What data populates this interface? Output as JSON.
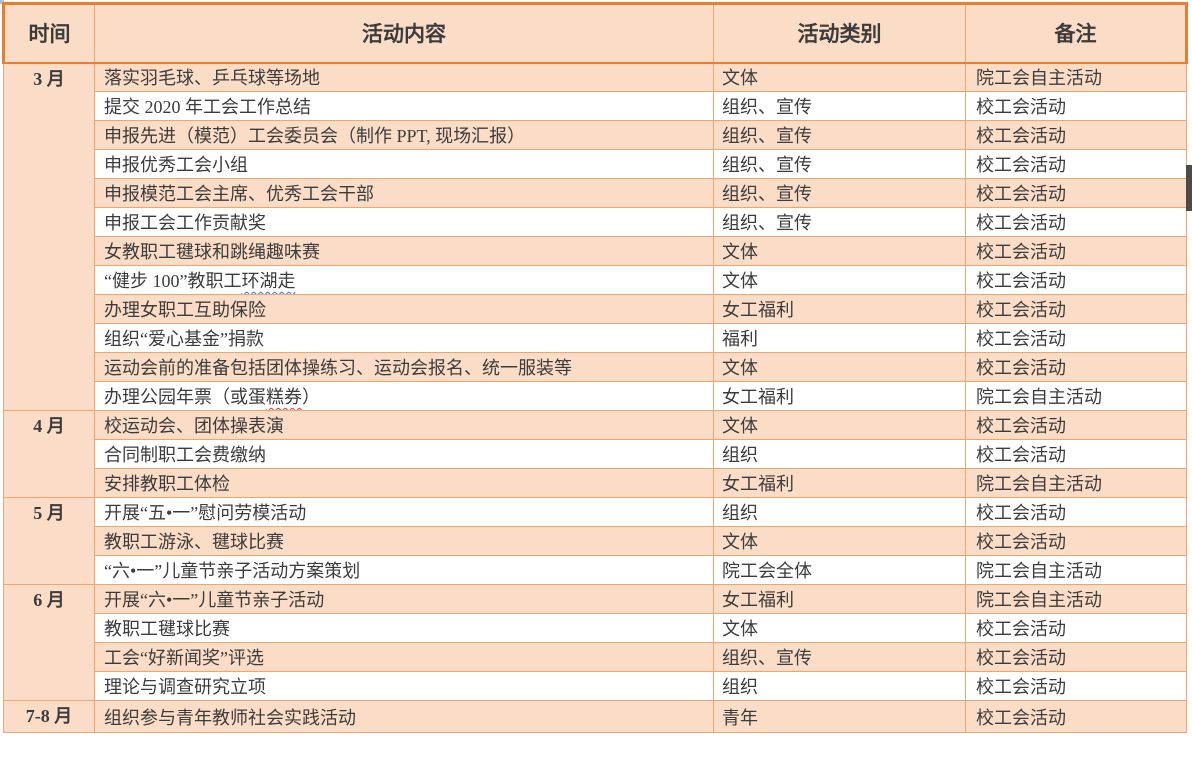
{
  "colors": {
    "peach": "#fbdcc6",
    "border_light": "#f2a46e",
    "border_dark": "#e87d33",
    "text": "#3c3c3c"
  },
  "table": {
    "columns": [
      "时间",
      "活动内容",
      "活动类别",
      "备注"
    ],
    "rows": [
      {
        "month": "3 月",
        "span": 12,
        "content": [
          {
            "t": "落实羽毛球、乒乓球等场地"
          }
        ],
        "category": "文体",
        "remark": "院工会自主活动"
      },
      {
        "content": [
          {
            "t": "提交 2020 年工会工作总结"
          }
        ],
        "category": "组织、宣传",
        "remark": "校工会活动"
      },
      {
        "content": [
          {
            "t": "申报先进（模范）工会委员会（制作 PPT, 现场汇报）"
          }
        ],
        "category": "组织、宣传",
        "remark": "校工会活动"
      },
      {
        "content": [
          {
            "t": "申报优秀工会小组"
          }
        ],
        "category": "组织、宣传",
        "remark": "校工会活动"
      },
      {
        "content": [
          {
            "t": "申报模范工会主席、优秀工会干部"
          }
        ],
        "category": "组织、宣传",
        "remark": "校工会活动"
      },
      {
        "content": [
          {
            "t": "申报工会工作贡献奖"
          }
        ],
        "category": "组织、宣传",
        "remark": "校工会活动"
      },
      {
        "content": [
          {
            "t": "女教职工毽球和跳绳趣味赛"
          }
        ],
        "category": "文体",
        "remark": "校工会活动"
      },
      {
        "content": [
          {
            "t": "“健步 100”教职工"
          },
          {
            "t": "环湖走",
            "u": "blue"
          }
        ],
        "category": "文体",
        "remark": "校工会活动"
      },
      {
        "content": [
          {
            "t": "办理女职工互助保险"
          }
        ],
        "category": "女工福利",
        "remark": "校工会活动"
      },
      {
        "content": [
          {
            "t": "组织“爱心基金”捐款"
          }
        ],
        "category": "福利",
        "remark": "校工会活动"
      },
      {
        "content": [
          {
            "t": "运动会前的准备包括团体操练习、运动会报名、统一服装等"
          }
        ],
        "category": "文体",
        "remark": "校工会活动"
      },
      {
        "content": [
          {
            "t": "办理公园年票（或蛋"
          },
          {
            "t": "糕券",
            "u": "red"
          },
          {
            "t": "）"
          }
        ],
        "category": "女工福利",
        "remark": "院工会自主活动"
      },
      {
        "month": "4 月",
        "span": 3,
        "content": [
          {
            "t": "校运动会、团体操表演"
          }
        ],
        "category": "文体",
        "remark": "校工会活动"
      },
      {
        "content": [
          {
            "t": "合同制职工会费缴纳"
          }
        ],
        "category": "组织",
        "remark": "校工会活动"
      },
      {
        "content": [
          {
            "t": "安排教职工体检"
          }
        ],
        "category": "女工福利",
        "remark": "院工会自主活动"
      },
      {
        "month": "5 月",
        "span": 3,
        "content": [
          {
            "t": "开展“五•一”慰问劳模活动"
          }
        ],
        "category": "组织",
        "remark": "校工会活动"
      },
      {
        "content": [
          {
            "t": "教职工游泳、毽球比赛"
          }
        ],
        "category": "文体",
        "remark": "校工会活动"
      },
      {
        "content": [
          {
            "t": "“六•一”儿童节亲子活动方案策划"
          }
        ],
        "category": "院工会全体",
        "remark": "院工会自主活动"
      },
      {
        "month": "6 月",
        "span": 4,
        "content": [
          {
            "t": "开展“六•一”儿童节亲子活动"
          }
        ],
        "category": "女工福利",
        "remark": "院工会自主活动"
      },
      {
        "content": [
          {
            "t": "教职工毽球比赛"
          }
        ],
        "category": "文体",
        "remark": "校工会活动"
      },
      {
        "content": [
          {
            "t": "工会“好新闻奖”评选"
          }
        ],
        "category": "组织、宣传",
        "remark": "校工会活动"
      },
      {
        "content": [
          {
            "t": "理论与调查研究立项"
          }
        ],
        "category": "组织",
        "remark": "校工会活动"
      },
      {
        "month": "7-8 月",
        "span": 1,
        "content": [
          {
            "t": "组织参与青年教师社会实践活动"
          }
        ],
        "category": "青年",
        "remark": "校工会活动"
      }
    ]
  }
}
